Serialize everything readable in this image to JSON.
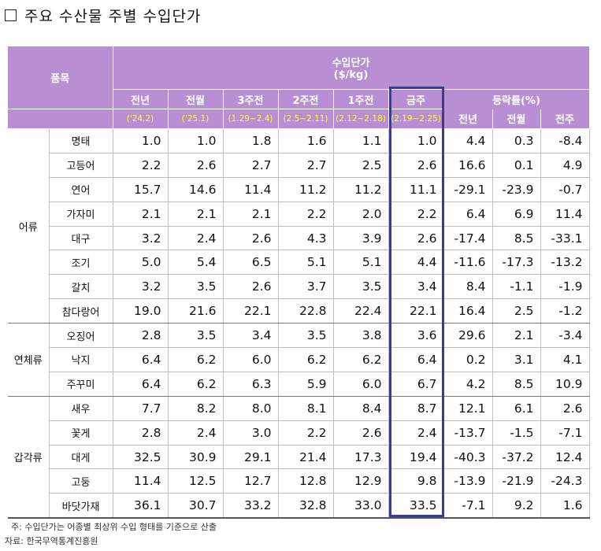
{
  "title": "주요 수산물 주별 수입단가",
  "header": {
    "item_label": "품목",
    "price_group": "수입단가",
    "price_unit": "($/kg)",
    "change_group": "등락률(%)",
    "columns": [
      {
        "label": "전년",
        "period": "('24.2)"
      },
      {
        "label": "전월",
        "period": "('25.1)"
      },
      {
        "label": "3주전",
        "period": "(1.29~2.4)"
      },
      {
        "label": "2주전",
        "period": "(2.5~2.11)"
      },
      {
        "label": "1주전",
        "period": "(2.12~2.18)"
      },
      {
        "label": "금주",
        "period": "(2.19~2.25)"
      }
    ],
    "change_columns": [
      "전년",
      "전월",
      "전주"
    ]
  },
  "groups": [
    {
      "category": "어류",
      "rows": [
        {
          "name": "명태",
          "values": [
            "1.0",
            "1.0",
            "1.8",
            "1.6",
            "1.1",
            "1.0"
          ],
          "changes": [
            "4.4",
            "0.3",
            "-8.4"
          ]
        },
        {
          "name": "고등어",
          "values": [
            "2.2",
            "2.6",
            "2.7",
            "2.7",
            "2.5",
            "2.6"
          ],
          "changes": [
            "16.6",
            "0.1",
            "4.9"
          ]
        },
        {
          "name": "연어",
          "values": [
            "15.7",
            "14.6",
            "11.4",
            "11.2",
            "11.2",
            "11.1"
          ],
          "changes": [
            "-29.1",
            "-23.9",
            "-0.7"
          ]
        },
        {
          "name": "가자미",
          "values": [
            "2.1",
            "2.1",
            "2.1",
            "2.2",
            "2.0",
            "2.2"
          ],
          "changes": [
            "6.4",
            "6.9",
            "11.4"
          ]
        },
        {
          "name": "대구",
          "values": [
            "3.2",
            "2.4",
            "2.6",
            "4.3",
            "3.9",
            "2.6"
          ],
          "changes": [
            "-17.4",
            "8.5",
            "-33.1"
          ]
        },
        {
          "name": "조기",
          "values": [
            "5.0",
            "5.4",
            "6.5",
            "5.1",
            "5.1",
            "4.4"
          ],
          "changes": [
            "-11.6",
            "-17.3",
            "-13.2"
          ]
        },
        {
          "name": "갈치",
          "values": [
            "3.2",
            "3.5",
            "2.6",
            "3.7",
            "3.5",
            "3.4"
          ],
          "changes": [
            "8.4",
            "-1.1",
            "-1.9"
          ]
        },
        {
          "name": "참다랑어",
          "values": [
            "19.0",
            "21.6",
            "22.1",
            "22.8",
            "22.4",
            "22.1"
          ],
          "changes": [
            "16.4",
            "2.5",
            "-1.2"
          ]
        }
      ]
    },
    {
      "category": "연체류",
      "rows": [
        {
          "name": "오징어",
          "values": [
            "2.8",
            "3.5",
            "3.4",
            "3.5",
            "3.8",
            "3.6"
          ],
          "changes": [
            "29.6",
            "2.1",
            "-3.4"
          ]
        },
        {
          "name": "낙지",
          "values": [
            "6.4",
            "6.2",
            "6.0",
            "6.2",
            "6.2",
            "6.4"
          ],
          "changes": [
            "0.2",
            "3.1",
            "4.1"
          ]
        },
        {
          "name": "주꾸미",
          "values": [
            "6.4",
            "6.2",
            "6.3",
            "5.9",
            "6.0",
            "6.7"
          ],
          "changes": [
            "4.2",
            "8.5",
            "10.9"
          ]
        }
      ]
    },
    {
      "category": "갑각류",
      "rows": [
        {
          "name": "새우",
          "values": [
            "7.7",
            "8.2",
            "8.0",
            "8.1",
            "8.4",
            "8.7"
          ],
          "changes": [
            "12.1",
            "6.1",
            "2.6"
          ]
        },
        {
          "name": "꽃게",
          "values": [
            "2.8",
            "2.4",
            "3.0",
            "2.2",
            "2.6",
            "2.4"
          ],
          "changes": [
            "-13.7",
            "-1.5",
            "-7.1"
          ]
        },
        {
          "name": "대게",
          "values": [
            "32.5",
            "30.9",
            "29.1",
            "21.4",
            "17.3",
            "19.4"
          ],
          "changes": [
            "-40.3",
            "-37.2",
            "12.4"
          ]
        },
        {
          "name": "고둥",
          "values": [
            "11.4",
            "12.5",
            "12.7",
            "12.8",
            "12.9",
            "9.8"
          ],
          "changes": [
            "-13.9",
            "-21.9",
            "-24.3"
          ]
        },
        {
          "name": "바닷가재",
          "values": [
            "36.1",
            "30.7",
            "33.2",
            "32.8",
            "33.0",
            "33.5"
          ],
          "changes": [
            "-7.1",
            "9.2",
            "1.6"
          ]
        }
      ]
    }
  ],
  "footnote": "주: 수입단가는 어종별 최상위 수입 형태를 기준으로 산출",
  "source": "자료: 한국무역통계진흥원",
  "colors": {
    "header_bg": "#b98fd4",
    "period_text": "#ffff33",
    "highlight_border": "#3b3b8f"
  }
}
